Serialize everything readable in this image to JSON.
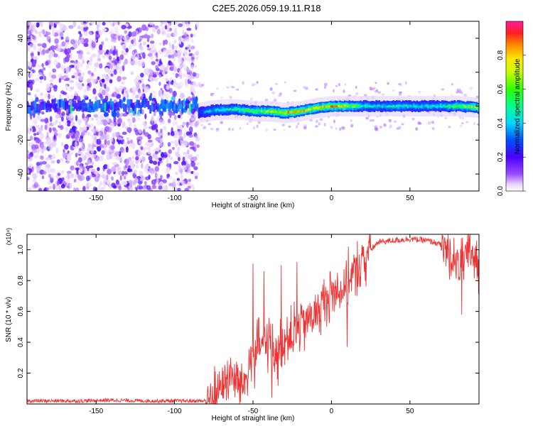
{
  "title": "C2E5.2026.059.19.11.R18",
  "chart_data": [
    {
      "type": "heatmap",
      "xlabel": "Height of straight line (km)",
      "ylabel": "Frequency (Hz)",
      "xlim": [
        -194,
        94
      ],
      "ylim": [
        -50,
        50
      ],
      "xticks": [
        -150,
        -100,
        -50,
        0,
        50
      ],
      "yticks": [
        -40,
        -20,
        0,
        20,
        40
      ],
      "colorbar": {
        "label": "Normalized spectral amplitude",
        "ticks": [
          0.0,
          0.2,
          0.4,
          0.6,
          0.8
        ],
        "range": [
          0,
          1
        ]
      },
      "description_series": [
        {
          "name": "noise_region",
          "x_range": [
            -194,
            -85
          ],
          "freq_range": [
            -50,
            50
          ],
          "amplitude": 0.05
        },
        {
          "name": "signal_band",
          "x": [
            -85,
            -80,
            -70,
            -60,
            -50,
            -40,
            -30,
            -20,
            -10,
            0,
            10,
            20,
            30,
            40,
            50,
            60,
            70,
            80,
            94
          ],
          "center_freq": [
            -4,
            -3,
            -2,
            -2,
            -3,
            -3,
            -4,
            -3,
            -1,
            0,
            0,
            0,
            0,
            0,
            0,
            0,
            0,
            0,
            -1
          ],
          "amplitude": [
            0.25,
            0.4,
            0.5,
            0.55,
            0.6,
            0.7,
            0.85,
            0.8,
            0.8,
            0.85,
            0.75,
            0.5,
            0.45,
            0.5,
            0.45,
            0.45,
            0.5,
            0.6,
            0.75
          ]
        }
      ]
    },
    {
      "type": "line",
      "xlabel": "Height of straight line (km)",
      "ylabel": "SNR (10 * v/v)",
      "multiplier": "(x10⁴)",
      "xlim": [
        -194,
        94
      ],
      "ylim": [
        0,
        1.1
      ],
      "xticks": [
        -150,
        -100,
        -50,
        0,
        50
      ],
      "yticks": [
        0.2,
        0.4,
        0.6,
        0.8,
        1.0
      ],
      "series": [
        {
          "name": "SNR",
          "color": "#ee3333",
          "x": [
            -194,
            -180,
            -160,
            -140,
            -120,
            -100,
            -90,
            -80,
            -75,
            -70,
            -65,
            -60,
            -55,
            -50,
            -45,
            -40,
            -35,
            -30,
            -25,
            -20,
            -15,
            -10,
            -5,
            0,
            5,
            10,
            15,
            20,
            25,
            30,
            40,
            50,
            60,
            65,
            70,
            75,
            80,
            85,
            90,
            94
          ],
          "values": [
            0.02,
            0.02,
            0.02,
            0.025,
            0.02,
            0.02,
            0.02,
            0.02,
            0.05,
            0.12,
            0.18,
            0.15,
            0.14,
            0.35,
            0.38,
            0.4,
            0.33,
            0.42,
            0.45,
            0.5,
            0.55,
            0.58,
            0.65,
            0.72,
            0.75,
            0.78,
            0.85,
            0.92,
            1.0,
            1.05,
            1.06,
            1.07,
            1.06,
            1.05,
            1.03,
            0.98,
            0.9,
            0.93,
            1.0,
            0.85
          ],
          "spikes": [
            {
              "x": -50,
              "value": 0.91
            },
            {
              "x": -49,
              "value": 0.1
            },
            {
              "x": -43,
              "value": 0.86
            },
            {
              "x": -38,
              "value": 0.04
            },
            {
              "x": -32,
              "value": 0.9
            },
            {
              "x": -22,
              "value": 0.92
            },
            {
              "x": 10,
              "value": 0.37
            },
            {
              "x": 83,
              "value": 0.58
            }
          ]
        }
      ]
    }
  ]
}
